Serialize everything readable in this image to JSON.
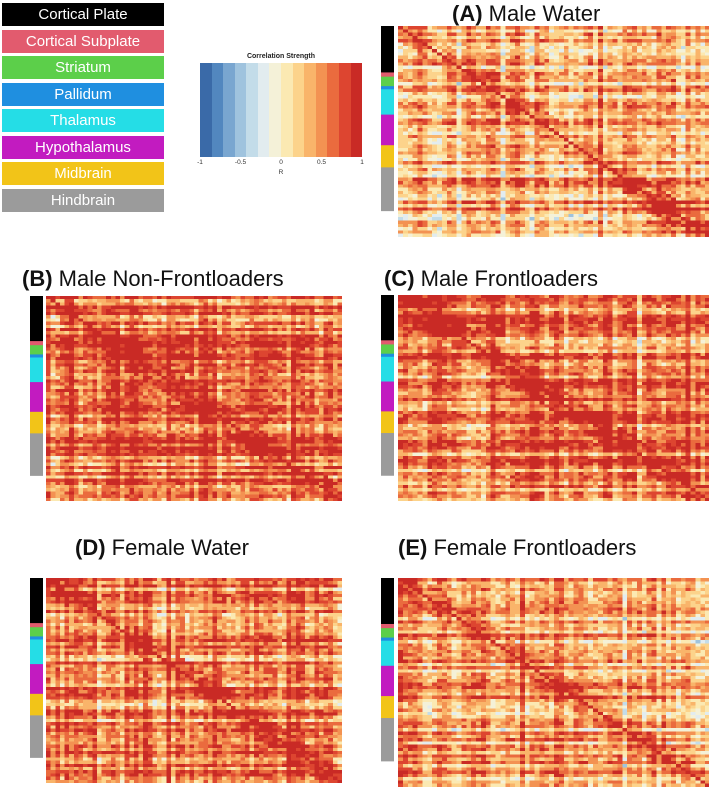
{
  "legend": {
    "items": [
      {
        "label": "Cortical Plate",
        "color": "#000000"
      },
      {
        "label": "Cortical Subplate",
        "color": "#e25b6e"
      },
      {
        "label": "Striatum",
        "color": "#5ccf4a"
      },
      {
        "label": "Pallidum",
        "color": "#1f8fe0"
      },
      {
        "label": "Thalamus",
        "color": "#25dde6"
      },
      {
        "label": "Hypothalamus",
        "color": "#c21bc0"
      },
      {
        "label": "Midbrain",
        "color": "#f2c418"
      },
      {
        "label": "Hindbrain",
        "color": "#9b9b9b"
      }
    ]
  },
  "colorbar": {
    "title": "Correlation Strength",
    "label": "R",
    "ticks": [
      "-1",
      "-0.5",
      "0",
      "0.5",
      "1"
    ],
    "colors": [
      "#3a6aa8",
      "#5287bf",
      "#79a6d0",
      "#9fc3de",
      "#c3dce9",
      "#e2ecef",
      "#f4f1d8",
      "#fbe9b2",
      "#fcd38b",
      "#f9b46a",
      "#f39252",
      "#ea6b3e",
      "#dd4530",
      "#c92a25"
    ]
  },
  "panels": [
    {
      "letter": "(A)",
      "name": "Male Water"
    },
    {
      "letter": "(B)",
      "name": "Male Non-Frontloaders"
    },
    {
      "letter": "(C)",
      "name": "Male Frontloaders"
    },
    {
      "letter": "(D)",
      "name": "Female Water"
    },
    {
      "letter": "(E)",
      "name": "Female Frontloaders"
    }
  ],
  "chart_data": {
    "type": "heatmap",
    "value_range": [
      -1,
      1
    ],
    "colorscale_label": "R",
    "regions": [
      "Cortical Plate",
      "Cortical Subplate",
      "Striatum",
      "Pallidum",
      "Thalamus",
      "Hypothalamus",
      "Midbrain",
      "Hindbrain"
    ],
    "region_fractions": [
      0.22,
      0.02,
      0.045,
      0.015,
      0.12,
      0.145,
      0.105,
      0.205
    ],
    "panel_mean_r": {
      "Male Water": 0.35,
      "Male Non-Frontloaders": 0.6,
      "Male Frontloaders": 0.5,
      "Female Water": 0.5,
      "Female Frontloaders": 0.38
    }
  }
}
